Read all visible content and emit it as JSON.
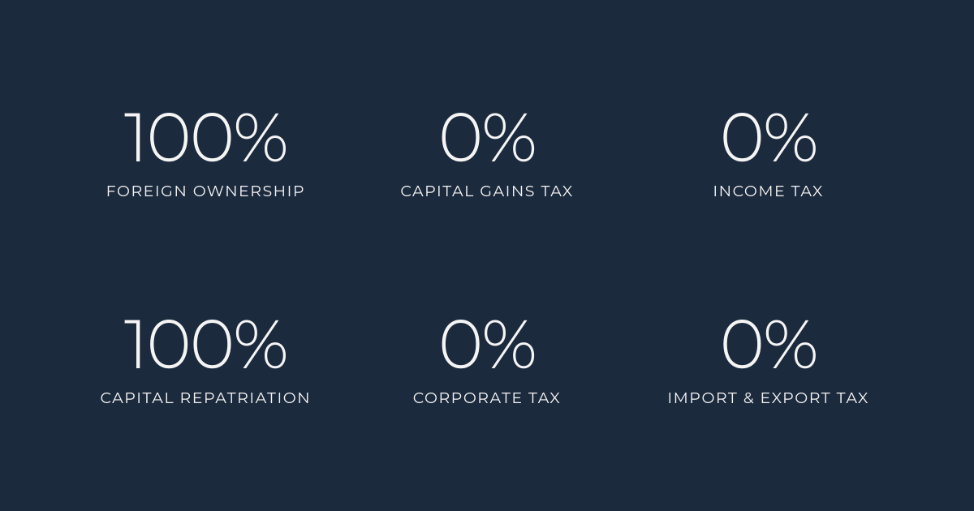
{
  "infographic": {
    "type": "infographic",
    "background_color": "#1c2a3e",
    "text_color": "#f5f5f5",
    "value_fontsize": 84,
    "value_fontweight": 300,
    "label_fontsize": 19,
    "label_fontweight": 400,
    "label_letterspacing": 1.5,
    "grid_columns": 3,
    "grid_rows": 2,
    "stats": [
      {
        "value": "100%",
        "label": "FOREIGN OWNERSHIP"
      },
      {
        "value": "0%",
        "label": "CAPITAL GAINS TAX"
      },
      {
        "value": "0%",
        "label": "INCOME TAX"
      },
      {
        "value": "100%",
        "label": "CAPITAL REPATRIATION"
      },
      {
        "value": "0%",
        "label": "CORPORATE TAX"
      },
      {
        "value": "0%",
        "label": "IMPORT & EXPORT TAX"
      }
    ]
  }
}
